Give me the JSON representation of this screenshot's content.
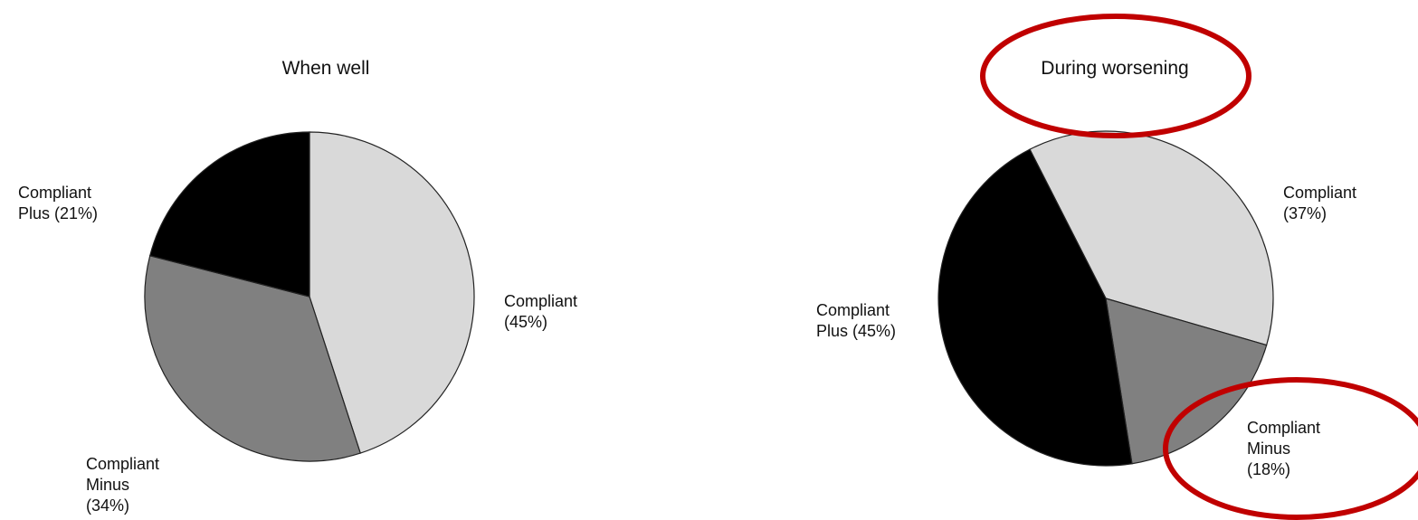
{
  "chart_data": [
    {
      "type": "pie",
      "title": "When well",
      "categories": [
        "Compliant",
        "Compliant Minus",
        "Compliant Plus"
      ],
      "values": [
        45,
        34,
        21
      ],
      "value_labels": [
        "(45%)",
        "(34%)",
        "(21%)"
      ],
      "colors": [
        "#d9d9d9",
        "#808080",
        "#000000"
      ]
    },
    {
      "type": "pie",
      "title": "During worsening",
      "categories": [
        "Compliant",
        "Compliant Minus",
        "Compliant Plus"
      ],
      "values": [
        37,
        18,
        45
      ],
      "value_labels": [
        "(37%)",
        "(18%)",
        "(45%)"
      ],
      "colors": [
        "#d9d9d9",
        "#808080",
        "#000000"
      ]
    }
  ]
}
